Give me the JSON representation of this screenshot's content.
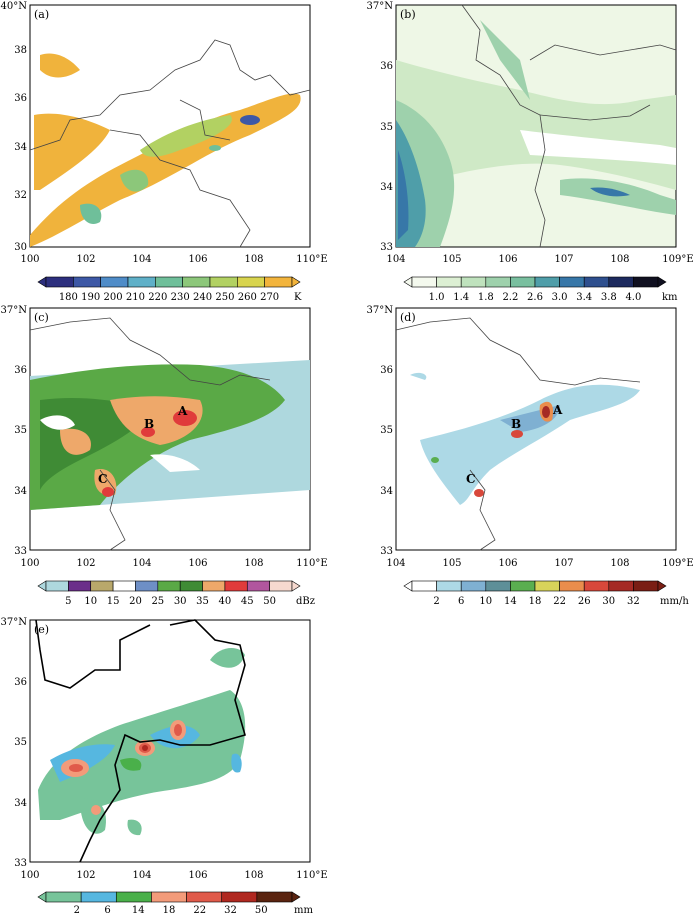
{
  "panels": [
    {
      "id": "a",
      "label": "(a)",
      "x_ticks": [
        "100",
        "102",
        "104",
        "106",
        "108",
        "110°E"
      ],
      "y_ticks": [
        "40°N",
        "38",
        "36",
        "34",
        "32",
        "30"
      ],
      "colorbar": {
        "labels": [
          "180",
          "190",
          "200",
          "210",
          "220",
          "230",
          "240",
          "250",
          "260",
          "270"
        ],
        "unit": "K",
        "colors": [
          "#2d2f7e",
          "#3d58a6",
          "#4f8cc8",
          "#5fb0c8",
          "#6fbf9a",
          "#8cc77a",
          "#b2d162",
          "#d8d44e",
          "#f2b43c"
        ]
      }
    },
    {
      "id": "b",
      "label": "(b)",
      "x_ticks": [
        "104",
        "105",
        "106",
        "107",
        "108",
        "109°E"
      ],
      "y_ticks": [
        "37°N",
        "36",
        "35",
        "34",
        "33"
      ],
      "colorbar": {
        "labels": [
          "1.0",
          "1.4",
          "1.8",
          "2.2",
          "2.6",
          "3.0",
          "3.4",
          "3.8",
          "4.0"
        ],
        "unit": "km",
        "colors": [
          "#f4f9ee",
          "#dcefd3",
          "#bfe2bd",
          "#9ed1ac",
          "#79bf9f",
          "#4f9ea9",
          "#3777a8",
          "#2e4f8e",
          "#1d2a5e",
          "#101020"
        ]
      }
    },
    {
      "id": "c",
      "label": "(c)",
      "x_ticks": [
        "100",
        "102",
        "104",
        "106",
        "108",
        "110°E"
      ],
      "y_ticks": [
        "37°N",
        "36",
        "35",
        "34",
        "33"
      ],
      "markers": [
        "A",
        "B",
        "C"
      ],
      "colorbar": {
        "labels": [
          "5",
          "10",
          "15",
          "20",
          "25",
          "30",
          "35",
          "40",
          "45",
          "50"
        ],
        "unit": "dBz",
        "colors": [
          "#aed8de",
          "#6b2f8a",
          "#b9a86b",
          "#ffffff",
          "#6e8fc6",
          "#5aa946",
          "#3f8b35",
          "#eea86a",
          "#e03b3b",
          "#b1569e",
          "#f6d9cf"
        ]
      }
    },
    {
      "id": "d",
      "label": "(d)",
      "x_ticks": [
        "104",
        "105",
        "106",
        "107",
        "108",
        "109°E"
      ],
      "y_ticks": [
        "37°N",
        "36",
        "35",
        "34",
        "33"
      ],
      "markers": [
        "A",
        "B",
        "C"
      ],
      "colorbar": {
        "labels": [
          "2",
          "6",
          "10",
          "14",
          "18",
          "22",
          "26",
          "30",
          "32"
        ],
        "unit": "mm/h",
        "colors": [
          "#ffffff",
          "#add9e6",
          "#7fb0d2",
          "#5e8f98",
          "#5aae50",
          "#d8d35a",
          "#ea8d4c",
          "#d8483b",
          "#a52a24",
          "#7a1e14"
        ]
      }
    },
    {
      "id": "e",
      "label": "(e)",
      "x_ticks": [
        "100",
        "102",
        "104",
        "106",
        "108",
        "110°E"
      ],
      "y_ticks": [
        "37°N",
        "36",
        "35",
        "34",
        "33"
      ],
      "colorbar": {
        "labels": [
          "2",
          "6",
          "14",
          "18",
          "22",
          "32",
          "50"
        ],
        "unit": "mm",
        "colors": [
          "#77c49a",
          "#56b7e0",
          "#4ab04a",
          "#f39b7a",
          "#e05a4a",
          "#b02820",
          "#5a2410"
        ]
      }
    }
  ],
  "chart_data": [
    {
      "type": "heatmap",
      "panel": "(a)",
      "xlabel": "",
      "ylabel": "",
      "xlim": [
        100,
        110
      ],
      "ylim": [
        30,
        40
      ],
      "units": "K",
      "color_levels": [
        180,
        190,
        200,
        210,
        220,
        230,
        240,
        250,
        260,
        270
      ]
    },
    {
      "type": "heatmap",
      "panel": "(b)",
      "xlabel": "",
      "ylabel": "",
      "xlim": [
        104,
        109
      ],
      "ylim": [
        33,
        37
      ],
      "units": "km",
      "color_levels": [
        1.0,
        1.4,
        1.8,
        2.2,
        2.6,
        3.0,
        3.4,
        3.8,
        4.0
      ]
    },
    {
      "type": "heatmap",
      "panel": "(c)",
      "xlabel": "",
      "ylabel": "",
      "xlim": [
        100,
        110
      ],
      "ylim": [
        33,
        37
      ],
      "units": "dBz",
      "color_levels": [
        5,
        10,
        15,
        20,
        25,
        30,
        35,
        40,
        45,
        50
      ],
      "annotations": [
        {
          "text": "A",
          "lon": 105.4,
          "lat": 35.4
        },
        {
          "text": "B",
          "lon": 104.1,
          "lat": 35.1
        },
        {
          "text": "C",
          "lon": 102.5,
          "lat": 34.2
        }
      ]
    },
    {
      "type": "heatmap",
      "panel": "(d)",
      "xlabel": "",
      "ylabel": "",
      "xlim": [
        104,
        109
      ],
      "ylim": [
        33,
        37
      ],
      "units": "mm/h",
      "color_levels": [
        2,
        6,
        10,
        14,
        18,
        22,
        26,
        30,
        32
      ],
      "annotations": [
        {
          "text": "A",
          "lon": 106.75,
          "lat": 35.45
        },
        {
          "text": "B",
          "lon": 106.0,
          "lat": 35.1
        },
        {
          "text": "C",
          "lon": 105.35,
          "lat": 34.3
        }
      ]
    },
    {
      "type": "heatmap",
      "panel": "(e)",
      "xlabel": "",
      "ylabel": "",
      "xlim": [
        100,
        110
      ],
      "ylim": [
        33,
        37
      ],
      "units": "mm",
      "color_levels": [
        2,
        6,
        14,
        18,
        22,
        32,
        50
      ]
    }
  ]
}
